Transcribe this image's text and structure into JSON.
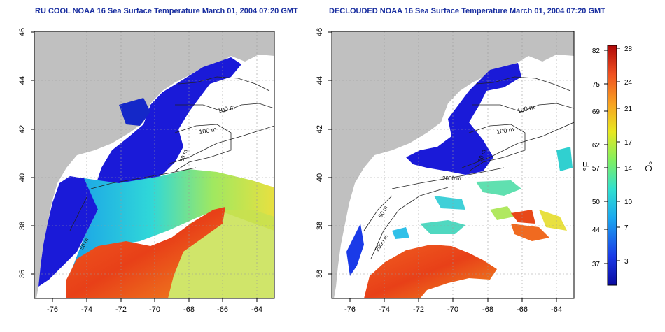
{
  "panels": [
    {
      "title": "RU COOL NOAA 16 Sea Surface Temperature March 01, 2004 07:20 GMT",
      "contour_labels": [
        "100 m",
        "100 m",
        "50 m",
        "50 m"
      ]
    },
    {
      "title": "DECLOUDED NOAA 16 Sea Surface Temperature March 01, 2004 07:20 GMT",
      "contour_labels": [
        "100 m",
        "100 m",
        "50 m",
        "2000 m",
        "50 m",
        "2000 m"
      ]
    }
  ],
  "axes": {
    "x_ticks": [
      "-76",
      "-74",
      "-72",
      "-70",
      "-68",
      "-66",
      "-64"
    ],
    "y_ticks": [
      "46",
      "44",
      "42",
      "40",
      "38",
      "36"
    ],
    "x_range": [
      -77,
      -63
    ],
    "y_range": [
      35,
      46
    ]
  },
  "colorbar": {
    "fahrenheit_label": "°F",
    "celsius_label": "°C",
    "fahrenheit_ticks": [
      "82",
      "75",
      "69",
      "62",
      "57",
      "50",
      "44",
      "37"
    ],
    "celsius_ticks": [
      "28",
      "24",
      "21",
      "17",
      "14",
      "10",
      "7",
      "3"
    ],
    "range_c": [
      0,
      28
    ]
  },
  "colors": {
    "land": "#c0c0c0",
    "cloud": "#ffffff",
    "cold": "#1a1ad8",
    "warm": "#e8461a",
    "title": "#1a2fa0"
  }
}
